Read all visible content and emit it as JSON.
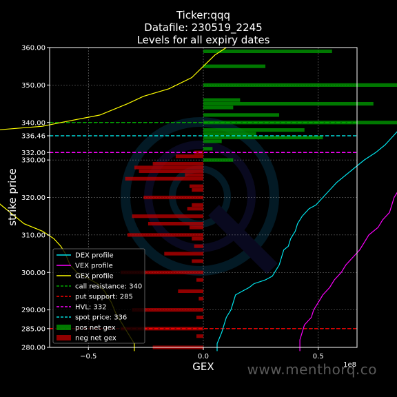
{
  "title": {
    "line1": "Ticker:qqq",
    "line2": "Datafile: 230519_2245",
    "line3": "Levels for all expiry dates"
  },
  "watermark": "www.menthorq.co",
  "colors": {
    "background": "#000000",
    "dex": "#00e5ee",
    "vex": "#ff00ff",
    "gex": "#ffff00",
    "call_resistance": "#00aa00",
    "put_support": "#ff0000",
    "hvl": "#ff00ff",
    "spot": "#00dddd",
    "pos_bar": "#00a000",
    "neg_bar": "#c00000"
  },
  "chart_data": {
    "type": "bar",
    "orientation": "horizontal",
    "xlabel": "GEX",
    "ylabel": "strike price",
    "x_offset_label": "1e8",
    "xlim": [
      -1.35,
      1.35
    ],
    "ylim": [
      280,
      360
    ],
    "grid": true,
    "legend_position": "lower-left",
    "x_ticks": [
      -1.0,
      -0.5,
      0.0,
      0.5,
      1.0
    ],
    "x_tick_labels": [
      "−1.0",
      "−0.5",
      "0.0",
      "0.5",
      "1.0"
    ],
    "y_ticks": [
      280,
      285,
      290,
      300,
      310,
      320,
      330,
      332,
      336.46,
      340,
      350,
      360
    ],
    "y_tick_labels": [
      "280.00",
      "285.00",
      "290.00",
      "300.00",
      "310.00",
      "320.00",
      "330.00",
      "332.00",
      "336.46",
      "340.00",
      "350.00",
      "360.00"
    ],
    "levels": [
      {
        "name": "call resistance: 340",
        "value": 340,
        "key": "call_resistance"
      },
      {
        "name": "put support: 285",
        "value": 285,
        "key": "put_support"
      },
      {
        "name": "HVL: 332",
        "value": 332,
        "key": "hvl"
      },
      {
        "name": "spot price: 336",
        "value": 336.46,
        "key": "spot"
      }
    ],
    "bars": [
      {
        "strike": 359,
        "value": 0.56
      },
      {
        "strike": 355,
        "value": 0.27
      },
      {
        "strike": 350,
        "value": 0.87
      },
      {
        "strike": 346,
        "value": 0.16
      },
      {
        "strike": 345,
        "value": 0.74
      },
      {
        "strike": 344,
        "value": 0.13
      },
      {
        "strike": 342,
        "value": 0.33
      },
      {
        "strike": 340,
        "value": 1.22
      },
      {
        "strike": 338,
        "value": 0.44
      },
      {
        "strike": 337,
        "value": 0.23
      },
      {
        "strike": 336,
        "value": 0.52
      },
      {
        "strike": 335,
        "value": 0.08
      },
      {
        "strike": 333,
        "value": 0.04
      },
      {
        "strike": 332,
        "value": -0.04
      },
      {
        "strike": 331,
        "value": -0.12
      },
      {
        "strike": 330,
        "value": 0.13
      },
      {
        "strike": 329,
        "value": -0.22
      },
      {
        "strike": 328,
        "value": -0.3
      },
      {
        "strike": 327,
        "value": -0.28
      },
      {
        "strike": 326,
        "value": -0.08
      },
      {
        "strike": 325,
        "value": -0.34
      },
      {
        "strike": 323,
        "value": -0.06
      },
      {
        "strike": 322,
        "value": -0.05
      },
      {
        "strike": 320,
        "value": -0.26
      },
      {
        "strike": 318,
        "value": -0.05
      },
      {
        "strike": 317,
        "value": -0.07
      },
      {
        "strike": 315,
        "value": -0.31
      },
      {
        "strike": 313,
        "value": -0.24
      },
      {
        "strike": 312,
        "value": -0.06
      },
      {
        "strike": 310,
        "value": -0.33
      },
      {
        "strike": 309,
        "value": -0.05
      },
      {
        "strike": 307,
        "value": -0.04
      },
      {
        "strike": 305,
        "value": -0.17
      },
      {
        "strike": 303,
        "value": -0.05
      },
      {
        "strike": 300,
        "value": -0.36
      },
      {
        "strike": 298,
        "value": -0.03
      },
      {
        "strike": 295,
        "value": -0.11
      },
      {
        "strike": 293,
        "value": -0.02
      },
      {
        "strike": 290,
        "value": -0.31
      },
      {
        "strike": 288,
        "value": -0.03
      },
      {
        "strike": 285,
        "value": -0.36
      },
      {
        "strike": 283,
        "value": -0.03
      },
      {
        "strike": 280,
        "value": -0.22
      }
    ],
    "series": [
      {
        "name": "DEX profile",
        "key": "dex",
        "points": [
          [
            0.06,
            279
          ],
          [
            0.06,
            281
          ],
          [
            0.08,
            284
          ],
          [
            0.09,
            286
          ],
          [
            0.1,
            288
          ],
          [
            0.12,
            290
          ],
          [
            0.13,
            292
          ],
          [
            0.14,
            294
          ],
          [
            0.17,
            295
          ],
          [
            0.2,
            296
          ],
          [
            0.22,
            297
          ],
          [
            0.27,
            298
          ],
          [
            0.3,
            299
          ],
          [
            0.31,
            300
          ],
          [
            0.33,
            302
          ],
          [
            0.34,
            304
          ],
          [
            0.35,
            306
          ],
          [
            0.37,
            307
          ],
          [
            0.38,
            309
          ],
          [
            0.4,
            311
          ],
          [
            0.41,
            313
          ],
          [
            0.43,
            315
          ],
          [
            0.46,
            317
          ],
          [
            0.49,
            318
          ],
          [
            0.52,
            320
          ],
          [
            0.55,
            322
          ],
          [
            0.58,
            324
          ],
          [
            0.62,
            326
          ],
          [
            0.66,
            328
          ],
          [
            0.7,
            330
          ],
          [
            0.75,
            332
          ],
          [
            0.79,
            334
          ],
          [
            0.82,
            336
          ],
          [
            0.85,
            338
          ],
          [
            0.88,
            340
          ],
          [
            0.9,
            342
          ],
          [
            0.92,
            344
          ],
          [
            0.94,
            346
          ],
          [
            0.96,
            348
          ],
          [
            0.99,
            350
          ],
          [
            1.01,
            352
          ],
          [
            1.03,
            354
          ],
          [
            1.05,
            356
          ],
          [
            1.08,
            358
          ],
          [
            1.11,
            360
          ]
        ]
      },
      {
        "name": "VEX profile",
        "key": "vex",
        "points": [
          [
            0.42,
            279
          ],
          [
            0.42,
            282
          ],
          [
            0.43,
            284
          ],
          [
            0.44,
            286
          ],
          [
            0.47,
            288
          ],
          [
            0.48,
            290
          ],
          [
            0.5,
            292
          ],
          [
            0.52,
            294
          ],
          [
            0.55,
            296
          ],
          [
            0.57,
            298
          ],
          [
            0.6,
            300
          ],
          [
            0.62,
            302
          ],
          [
            0.65,
            304
          ],
          [
            0.68,
            306
          ],
          [
            0.7,
            308
          ],
          [
            0.72,
            310
          ],
          [
            0.76,
            312
          ],
          [
            0.78,
            314
          ],
          [
            0.81,
            316
          ],
          [
            0.82,
            318
          ],
          [
            0.83,
            320
          ],
          [
            0.85,
            322
          ],
          [
            0.86,
            324
          ],
          [
            0.87,
            326
          ],
          [
            0.88,
            328
          ],
          [
            0.89,
            330
          ],
          [
            0.91,
            332
          ],
          [
            0.93,
            334
          ],
          [
            0.95,
            336
          ],
          [
            0.97,
            338
          ],
          [
            0.99,
            340
          ],
          [
            1.01,
            342
          ],
          [
            1.02,
            344
          ],
          [
            1.03,
            346
          ],
          [
            1.05,
            348
          ],
          [
            1.06,
            350
          ],
          [
            1.07,
            352
          ],
          [
            1.08,
            354
          ],
          [
            1.09,
            356
          ],
          [
            1.1,
            358
          ],
          [
            1.12,
            360
          ]
        ]
      },
      {
        "name": "GEX profile",
        "key": "gex",
        "points": [
          [
            -0.3,
            279
          ],
          [
            -0.3,
            281
          ],
          [
            -0.33,
            284
          ],
          [
            -0.35,
            286
          ],
          [
            -0.38,
            289
          ],
          [
            -0.4,
            292
          ],
          [
            -0.43,
            295
          ],
          [
            -0.46,
            297
          ],
          [
            -0.52,
            299
          ],
          [
            -0.55,
            300
          ],
          [
            -0.58,
            302
          ],
          [
            -0.6,
            305
          ],
          [
            -0.62,
            307
          ],
          [
            -0.65,
            309
          ],
          [
            -0.7,
            311
          ],
          [
            -0.78,
            313
          ],
          [
            -0.82,
            315
          ],
          [
            -0.88,
            318
          ],
          [
            -0.93,
            321
          ],
          [
            -0.99,
            324
          ],
          [
            -1.02,
            325
          ],
          [
            -1.08,
            326
          ],
          [
            -1.12,
            328
          ],
          [
            -1.18,
            330
          ],
          [
            -1.2,
            331
          ],
          [
            -1.2,
            333
          ],
          [
            -1.13,
            335
          ],
          [
            -1.05,
            337
          ],
          [
            -0.9,
            338
          ],
          [
            -0.7,
            339
          ],
          [
            -0.62,
            340
          ],
          [
            -0.45,
            342
          ],
          [
            -0.33,
            345
          ],
          [
            -0.26,
            347
          ],
          [
            -0.15,
            349
          ],
          [
            -0.05,
            352
          ],
          [
            0.0,
            355
          ],
          [
            0.05,
            358
          ],
          [
            0.1,
            360
          ]
        ]
      }
    ],
    "bar_legend": [
      {
        "name": "pos net gex",
        "key": "pos_bar"
      },
      {
        "name": "neg net gex",
        "key": "neg_bar"
      }
    ]
  }
}
